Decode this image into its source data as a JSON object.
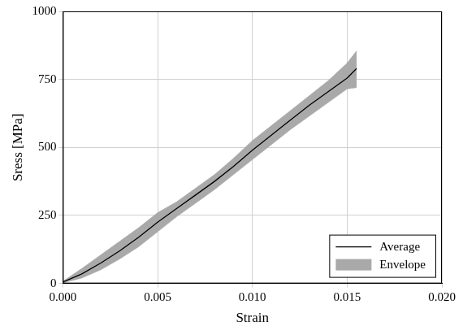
{
  "chart_data": {
    "type": "line",
    "x_label": "Strain",
    "y_label": "Sress [MPa]",
    "x": [
      0,
      0.001,
      0.002,
      0.003,
      0.004,
      0.005,
      0.006,
      0.007,
      0.008,
      0.009,
      0.01,
      0.011,
      0.012,
      0.013,
      0.014,
      0.015,
      0.0155
    ],
    "series": [
      {
        "name": "Average",
        "color": "#000000",
        "type": "line",
        "values": [
          5,
          35,
          75,
          120,
          170,
          225,
          275,
          325,
          375,
          430,
          490,
          545,
          600,
          655,
          705,
          755,
          790
        ]
      },
      {
        "name": "Envelope",
        "color": "#a9a9a9",
        "type": "area",
        "lower": [
          2,
          20,
          50,
          90,
          135,
          190,
          245,
          295,
          345,
          400,
          455,
          510,
          565,
          615,
          665,
          715,
          720
        ],
        "upper": [
          8,
          55,
          105,
          155,
          205,
          260,
          300,
          350,
          400,
          460,
          525,
          580,
          635,
          690,
          745,
          810,
          855
        ]
      }
    ],
    "xlim": [
      0,
      0.02
    ],
    "xticks": [
      {
        "value": 0,
        "label": "0.000"
      },
      {
        "value": 0.005,
        "label": "0.005"
      },
      {
        "value": 0.01,
        "label": "0.010"
      },
      {
        "value": 0.015,
        "label": "0.015"
      },
      {
        "value": 0.02,
        "label": "0.020"
      }
    ],
    "ylim": [
      0,
      1000
    ],
    "yticks": [
      0,
      250,
      500,
      750,
      1000
    ],
    "grid": true,
    "legend": "lower right"
  }
}
